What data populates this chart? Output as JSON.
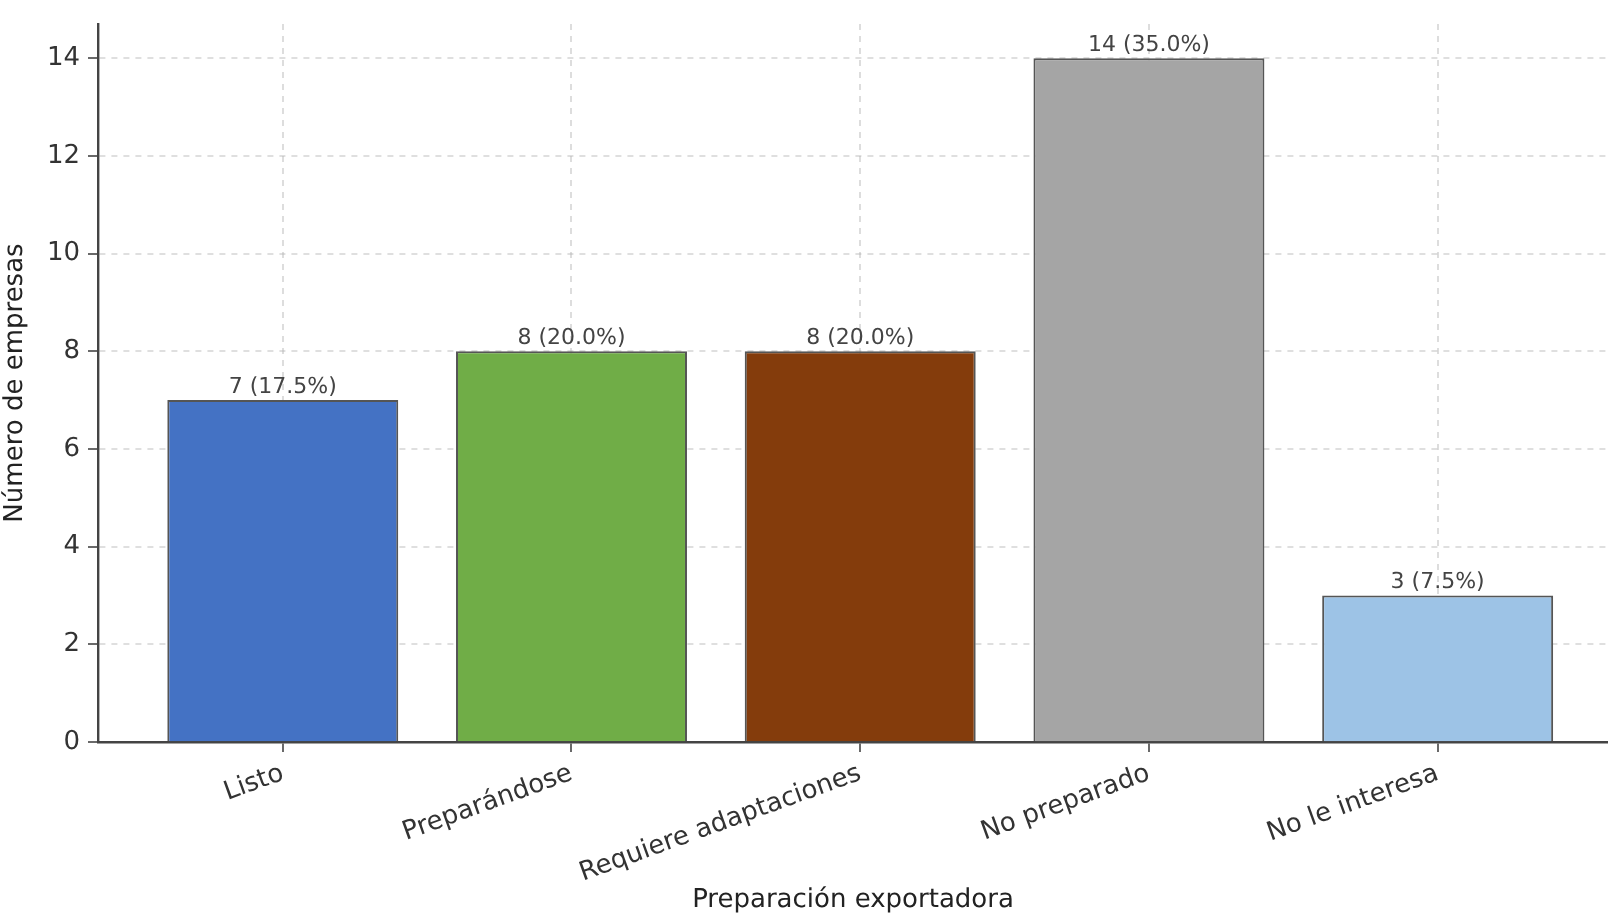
{
  "chart_data": {
    "type": "bar",
    "xlabel": "Preparación exportadora",
    "ylabel": "Número de empresas",
    "categories": [
      "Listo",
      "Preparándose",
      "Requiere adaptaciones",
      "No preparado",
      "No le interesa"
    ],
    "values": [
      7,
      8,
      8,
      14,
      3
    ],
    "colors": [
      "#4472c4",
      "#70ad47",
      "#843c0c",
      "#a5a5a5",
      "#9dc3e6"
    ],
    "value_labels": [
      "7 (17.5%)",
      "8 (20.0%)",
      "8 (20.0%)",
      "14 (35.0%)",
      "3 (7.5%)"
    ],
    "ylim": [
      0,
      14.7
    ],
    "yticks": [
      0,
      2,
      4,
      6,
      8,
      10,
      12,
      14
    ],
    "grid": true
  }
}
